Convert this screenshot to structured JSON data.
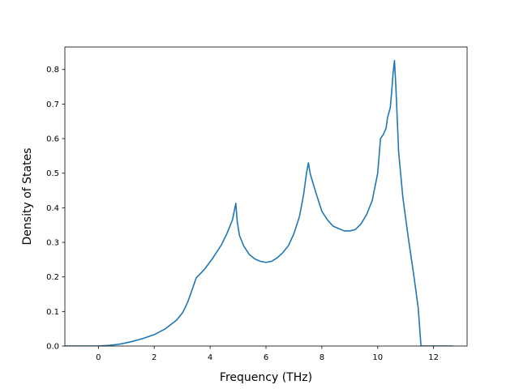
{
  "chart_data": {
    "type": "line",
    "title": "",
    "xlabel": "Frequency (THz)",
    "ylabel": "Density of States",
    "xlim": [
      -1.2,
      13.2
    ],
    "ylim": [
      0.0,
      0.865
    ],
    "xticks": [
      0,
      2,
      4,
      6,
      8,
      10,
      12
    ],
    "xtick_labels": [
      "0",
      "2",
      "4",
      "6",
      "8",
      "10",
      "12"
    ],
    "yticks": [
      0.0,
      0.1,
      0.2,
      0.3,
      0.4,
      0.5,
      0.6,
      0.7,
      0.8
    ],
    "ytick_labels": [
      "0.0",
      "0.1",
      "0.2",
      "0.3",
      "0.4",
      "0.5",
      "0.6",
      "0.7",
      "0.8"
    ],
    "grid": false,
    "legend": "none",
    "series": [
      {
        "color": "#1f77b4",
        "x": [
          -1.2,
          -0.6,
          0.0,
          0.4,
          0.8,
          1.2,
          1.6,
          2.0,
          2.4,
          2.8,
          3.0,
          3.1,
          3.2,
          3.3,
          3.5,
          3.8,
          4.1,
          4.4,
          4.6,
          4.8,
          4.92,
          4.97,
          5.05,
          5.2,
          5.4,
          5.6,
          5.8,
          6.0,
          6.2,
          6.4,
          6.6,
          6.8,
          7.0,
          7.2,
          7.35,
          7.45,
          7.52,
          7.58,
          7.65,
          7.8,
          8.0,
          8.2,
          8.4,
          8.6,
          8.8,
          9.0,
          9.2,
          9.4,
          9.6,
          9.8,
          10.0,
          10.1,
          10.2,
          10.3,
          10.35,
          10.45,
          10.5,
          10.55,
          10.6,
          10.65,
          10.75,
          10.9,
          11.1,
          11.3,
          11.45,
          11.55,
          11.7,
          12.0,
          12.4,
          12.7
        ],
        "y": [
          0.0,
          0.0,
          0.0,
          0.002,
          0.006,
          0.013,
          0.022,
          0.033,
          0.05,
          0.075,
          0.095,
          0.11,
          0.128,
          0.15,
          0.197,
          0.222,
          0.255,
          0.292,
          0.325,
          0.365,
          0.413,
          0.36,
          0.32,
          0.29,
          0.265,
          0.252,
          0.245,
          0.242,
          0.245,
          0.255,
          0.27,
          0.29,
          0.325,
          0.375,
          0.44,
          0.5,
          0.53,
          0.5,
          0.48,
          0.44,
          0.39,
          0.365,
          0.347,
          0.34,
          0.333,
          0.333,
          0.337,
          0.353,
          0.38,
          0.42,
          0.5,
          0.6,
          0.612,
          0.63,
          0.66,
          0.69,
          0.735,
          0.79,
          0.826,
          0.75,
          0.56,
          0.43,
          0.31,
          0.2,
          0.11,
          0.0,
          0.0,
          0.0,
          0.0,
          0.0
        ]
      }
    ]
  }
}
